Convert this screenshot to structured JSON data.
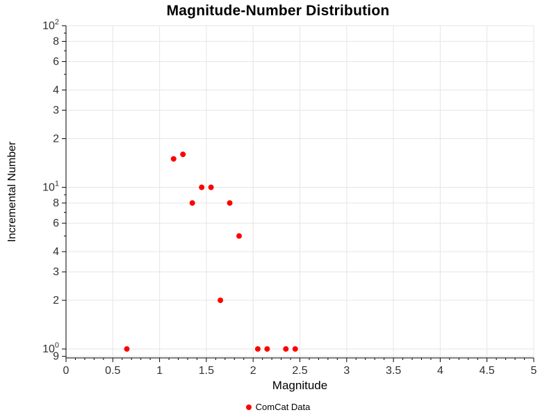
{
  "chart_data": {
    "type": "scatter",
    "title": "Magnitude-Number Distribution",
    "xlabel": "Magnitude",
    "ylabel": "Incremental Number",
    "x_range": [
      0,
      5
    ],
    "y_range": [
      0.88,
      100
    ],
    "y_scale": "log",
    "grid": true,
    "grid_color": "#e5e5e5",
    "frame_color": "#e5e5e5",
    "axis_color": "#000000",
    "tick_label_color": "#303030",
    "legend_position": "bottom-center",
    "series": [
      {
        "name": "ComCat Data",
        "color": "#ff0000",
        "marker": "circle",
        "points": [
          {
            "x": 0.65,
            "y": 1
          },
          {
            "x": 1.15,
            "y": 15
          },
          {
            "x": 1.25,
            "y": 16
          },
          {
            "x": 1.35,
            "y": 8
          },
          {
            "x": 1.45,
            "y": 10
          },
          {
            "x": 1.55,
            "y": 10
          },
          {
            "x": 1.65,
            "y": 2
          },
          {
            "x": 1.75,
            "y": 8
          },
          {
            "x": 1.85,
            "y": 5
          },
          {
            "x": 2.05,
            "y": 1
          },
          {
            "x": 2.15,
            "y": 1
          },
          {
            "x": 2.35,
            "y": 1
          },
          {
            "x": 2.45,
            "y": 1
          }
        ]
      }
    ],
    "x_ticks": [
      {
        "value": 0,
        "label": "0"
      },
      {
        "value": 0.5,
        "label": "0.5"
      },
      {
        "value": 1,
        "label": "1"
      },
      {
        "value": 1.5,
        "label": "1.5"
      },
      {
        "value": 2,
        "label": "2"
      },
      {
        "value": 2.5,
        "label": "2.5"
      },
      {
        "value": 3,
        "label": "3"
      },
      {
        "value": 3.5,
        "label": "3.5"
      },
      {
        "value": 4,
        "label": "4"
      },
      {
        "value": 4.5,
        "label": "4.5"
      },
      {
        "value": 5,
        "label": "5"
      }
    ],
    "y_ticks": [
      {
        "value": 100,
        "label": "10^2"
      },
      {
        "value": 80,
        "label": "8"
      },
      {
        "value": 60,
        "label": "6"
      },
      {
        "value": 40,
        "label": "4"
      },
      {
        "value": 30,
        "label": "3"
      },
      {
        "value": 20,
        "label": "2"
      },
      {
        "value": 10,
        "label": "10^1"
      },
      {
        "value": 8,
        "label": "8"
      },
      {
        "value": 6,
        "label": "6"
      },
      {
        "value": 4,
        "label": "4"
      },
      {
        "value": 3,
        "label": "3"
      },
      {
        "value": 2,
        "label": "2"
      },
      {
        "value": 1,
        "label": "10^0"
      },
      {
        "value": 0.9,
        "label": "9"
      }
    ],
    "y_minor_ticks": [
      5,
      7,
      9,
      50,
      70,
      90
    ]
  }
}
